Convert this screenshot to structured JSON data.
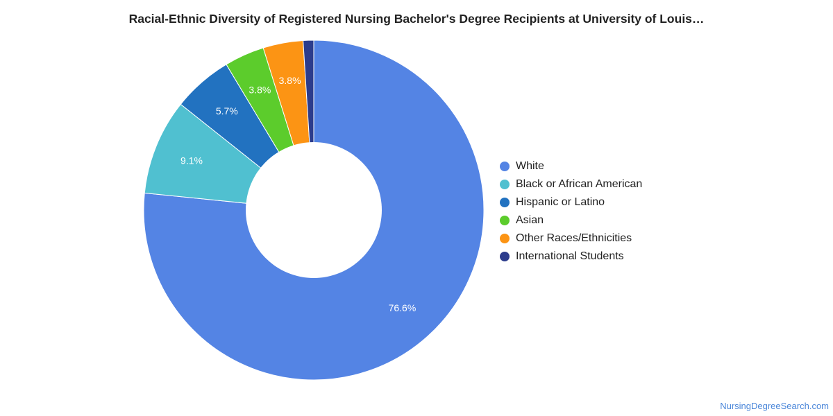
{
  "chart_data": {
    "type": "pie",
    "title": "Racial-Ethnic Diversity of Registered Nursing Bachelor's Degree Recipients at University of Louis…",
    "donut": true,
    "categories": [
      "White",
      "Black or African American",
      "Hispanic or Latino",
      "Asian",
      "Other Races/Ethnicities",
      "International Students"
    ],
    "values": [
      76.6,
      9.1,
      5.7,
      3.8,
      3.8,
      1.0
    ],
    "labels": [
      "76.6%",
      "9.1%",
      "5.7%",
      "3.8%",
      "3.8%",
      ""
    ],
    "colors": [
      "#5484e4",
      "#50c0d0",
      "#2272c0",
      "#5ccc2c",
      "#fc9414",
      "#2c3c8c"
    ],
    "legend_position": "right"
  },
  "credit": "NursingDegreeSearch.com"
}
